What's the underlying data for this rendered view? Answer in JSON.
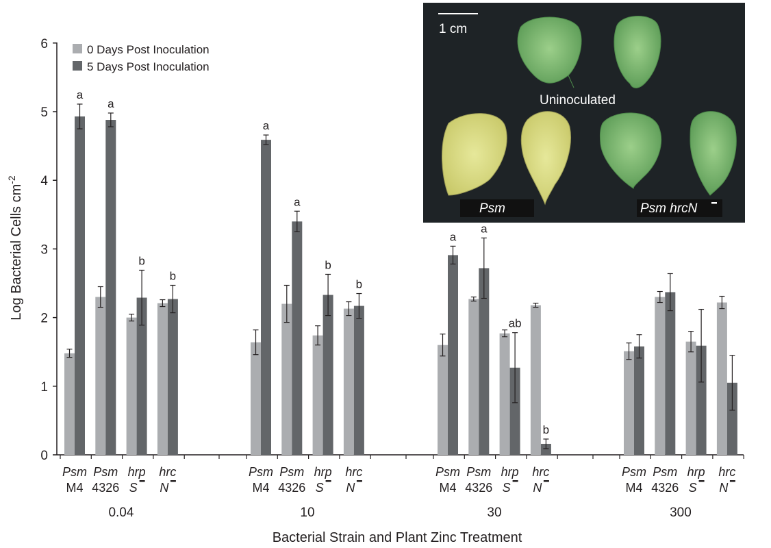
{
  "chart_data": {
    "type": "bar",
    "ylabel": "Log Bacterial Cells cm",
    "ylabel_sup": "-2",
    "xlabel": "Bacterial Strain and Plant Zinc Treatment",
    "ylim": [
      0,
      6
    ],
    "yticks": [
      "0",
      "1",
      "2",
      "3",
      "4",
      "5",
      "6"
    ],
    "legend_position": "top-left",
    "colors": {
      "day0": "#abadb0",
      "day5": "#636669"
    },
    "series": [
      {
        "name": "0 Days Post Inoculation"
      },
      {
        "name": "5 Days Post Inoculation"
      }
    ],
    "strains": [
      {
        "line1": "Psm",
        "line2": "M4",
        "line2_italic": false
      },
      {
        "line1": "Psm",
        "line2": "4326",
        "line2_italic": false
      },
      {
        "line1": "hrp",
        "line2": "S",
        "line2_italic": true
      },
      {
        "line1": "hrc",
        "line2": "N",
        "line2_italic": true
      }
    ],
    "groups": [
      {
        "label": "0.04",
        "bars": [
          {
            "d0": 1.48,
            "e0": 0.06,
            "d5": 4.93,
            "e5": 0.18,
            "sig": "a"
          },
          {
            "d0": 2.3,
            "e0": 0.15,
            "d5": 4.88,
            "e5": 0.1,
            "sig": "a"
          },
          {
            "d0": 2.0,
            "e0": 0.05,
            "d5": 2.29,
            "e5": 0.4,
            "sig": "b"
          },
          {
            "d0": 2.21,
            "e0": 0.05,
            "d5": 2.27,
            "e5": 0.2,
            "sig": "b"
          }
        ]
      },
      {
        "label": "10",
        "bars": [
          {
            "d0": 1.64,
            "e0": 0.18,
            "d5": 4.59,
            "e5": 0.07,
            "sig": "a"
          },
          {
            "d0": 2.2,
            "e0": 0.27,
            "d5": 3.4,
            "e5": 0.15,
            "sig": "a"
          },
          {
            "d0": 1.74,
            "e0": 0.14,
            "d5": 2.33,
            "e5": 0.3,
            "sig": "b"
          },
          {
            "d0": 2.13,
            "e0": 0.1,
            "d5": 2.17,
            "e5": 0.18,
            "sig": "b"
          }
        ]
      },
      {
        "label": "30",
        "bars": [
          {
            "d0": 1.6,
            "e0": 0.16,
            "d5": 2.91,
            "e5": 0.13,
            "sig": "a"
          },
          {
            "d0": 2.27,
            "e0": 0.03,
            "d5": 2.72,
            "e5": 0.44,
            "sig": "a"
          },
          {
            "d0": 1.77,
            "e0": 0.05,
            "d5": 1.27,
            "e5": 0.51,
            "sig": "ab"
          },
          {
            "d0": 2.18,
            "e0": 0.03,
            "d5": 0.16,
            "e5": 0.07,
            "sig": "b"
          }
        ]
      },
      {
        "label": "300",
        "bars": [
          {
            "d0": 1.51,
            "e0": 0.12,
            "d5": 1.58,
            "e5": 0.17,
            "sig": ""
          },
          {
            "d0": 2.3,
            "e0": 0.08,
            "d5": 2.37,
            "e5": 0.27,
            "sig": ""
          },
          {
            "d0": 1.65,
            "e0": 0.15,
            "d5": 1.59,
            "e5": 0.53,
            "sig": ""
          },
          {
            "d0": 2.22,
            "e0": 0.09,
            "d5": 1.05,
            "e5": 0.4,
            "sig": ""
          }
        ]
      }
    ]
  },
  "inset": {
    "scale_label": "1 cm",
    "uninoculated_label": "Uninoculated",
    "psm_label": "Psm",
    "psm_hrcn_label": "Psm hrcN"
  }
}
